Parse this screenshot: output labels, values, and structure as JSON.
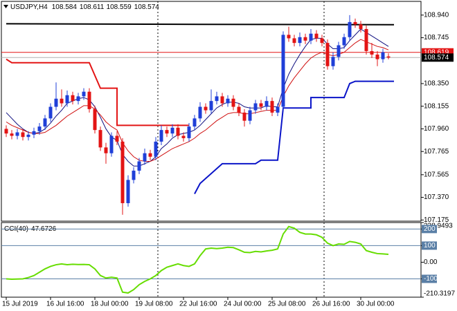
{
  "chart_data": [
    {
      "type": "candlestick",
      "title": "USDJPY,H4",
      "open": [
        107.96,
        107.92,
        107.9,
        107.93,
        107.89,
        107.91,
        107.94,
        107.98,
        108.05,
        108.15,
        108.22,
        108.18,
        108.25,
        108.2,
        108.24,
        108.28,
        108.13,
        107.95,
        107.8,
        107.75,
        107.9,
        107.85,
        107.32,
        107.52,
        107.6,
        107.68,
        107.75,
        107.72,
        107.85,
        107.95,
        107.92,
        107.97,
        107.9,
        107.88,
        107.98,
        108.05,
        108.15,
        108.12,
        108.2,
        108.24,
        108.18,
        108.22,
        108.15,
        108.1,
        108.03,
        108.12,
        108.18,
        108.15,
        108.2,
        108.1,
        108.15,
        108.77,
        108.74,
        108.7,
        108.75,
        108.72,
        108.78,
        108.74,
        108.7,
        108.5,
        108.58,
        108.68,
        108.75,
        108.88,
        108.86,
        108.82,
        108.63,
        108.6,
        108.56,
        108.584
      ],
      "high": [
        107.99,
        107.95,
        107.96,
        107.96,
        107.94,
        107.97,
        108.01,
        108.08,
        108.18,
        108.36,
        108.3,
        108.29,
        108.28,
        108.27,
        108.31,
        108.31,
        108.16,
        107.98,
        107.84,
        107.93,
        107.94,
        107.88,
        107.56,
        107.63,
        107.71,
        107.79,
        107.78,
        107.89,
        107.99,
        107.98,
        108.0,
        108.0,
        107.93,
        108.01,
        108.08,
        108.19,
        108.18,
        108.3,
        108.28,
        108.27,
        108.25,
        108.25,
        108.18,
        108.13,
        108.15,
        108.21,
        108.21,
        108.24,
        108.23,
        108.18,
        108.8,
        108.84,
        108.77,
        108.79,
        108.78,
        108.82,
        108.81,
        108.77,
        108.73,
        108.62,
        108.71,
        108.78,
        108.94,
        108.91,
        108.89,
        108.85,
        108.7,
        108.63,
        108.65,
        108.611
      ],
      "low": [
        107.89,
        107.87,
        107.87,
        107.86,
        107.86,
        107.88,
        107.91,
        107.95,
        108.02,
        108.12,
        108.15,
        108.15,
        108.17,
        108.17,
        108.21,
        108.1,
        107.92,
        107.77,
        107.66,
        107.72,
        107.82,
        107.22,
        107.29,
        107.49,
        107.57,
        107.65,
        107.69,
        107.69,
        107.82,
        107.89,
        107.89,
        107.87,
        107.85,
        107.85,
        107.95,
        108.02,
        108.09,
        108.09,
        108.17,
        108.15,
        108.15,
        108.12,
        108.07,
        107.98,
        108.0,
        108.09,
        108.12,
        108.12,
        108.07,
        108.07,
        108.12,
        108.71,
        108.67,
        108.67,
        108.69,
        108.69,
        108.71,
        108.67,
        108.47,
        108.47,
        108.55,
        108.65,
        108.72,
        108.83,
        108.79,
        108.6,
        108.57,
        108.5,
        108.53,
        108.559
      ],
      "close": [
        107.92,
        107.9,
        107.93,
        107.89,
        107.91,
        107.94,
        107.98,
        108.05,
        108.15,
        108.22,
        108.18,
        108.25,
        108.2,
        108.24,
        108.28,
        108.13,
        107.95,
        107.8,
        107.75,
        107.9,
        107.85,
        107.32,
        107.52,
        107.6,
        107.68,
        107.75,
        107.72,
        107.85,
        107.95,
        107.92,
        107.97,
        107.9,
        107.88,
        107.98,
        108.05,
        108.15,
        108.12,
        108.2,
        108.24,
        108.18,
        108.22,
        108.15,
        108.1,
        108.03,
        108.12,
        108.18,
        108.15,
        108.2,
        108.1,
        108.15,
        108.77,
        108.74,
        108.7,
        108.75,
        108.72,
        108.78,
        108.74,
        108.7,
        108.5,
        108.58,
        108.68,
        108.75,
        108.88,
        108.86,
        108.82,
        108.63,
        108.6,
        108.56,
        108.62,
        108.574
      ],
      "up_color": "#1f3fd8",
      "down_color": "#e31414",
      "ylim": [
        107.165,
        109.058
      ],
      "yticks": [
        {
          "value": 108.94,
          "label": "108.940"
        },
        108.745,
        {
          "value": 108.35,
          "label": "108.350"
        },
        108.155,
        {
          "value": 107.96,
          "label": "107.960"
        },
        107.765,
        107.565,
        {
          "value": 107.37,
          "label": "107.370"
        },
        107.175
      ],
      "xticks": [
        {
          "value": 0,
          "label": "15 Jul 2019"
        },
        {
          "value": 8,
          "label": "16 Jul 16:00"
        },
        {
          "value": 16,
          "label": "18 Jul 00:00"
        },
        {
          "value": 24,
          "label": "19 Jul 08:00"
        },
        {
          "value": 32,
          "label": "22 Jul 16:00"
        },
        {
          "value": 40,
          "label": "24 Jul 00:00"
        },
        {
          "value": 48,
          "label": "25 Jul 08:00"
        },
        {
          "value": 56,
          "label": "26 Jul 16:00"
        },
        {
          "value": 64,
          "label": "30 Jul 00:00"
        }
      ],
      "lines": [
        {
          "color": "#101080",
          "values": [
            108.1,
            108.05,
            108.0,
            107.96,
            107.93,
            107.92,
            107.93,
            107.96,
            108.01,
            108.07,
            108.12,
            108.18,
            108.2,
            108.22,
            108.23,
            108.21,
            108.15,
            108.06,
            107.96,
            107.89,
            107.86,
            107.74,
            107.68,
            107.64,
            107.64,
            107.66,
            107.68,
            107.72,
            107.79,
            107.83,
            107.88,
            107.91,
            107.92,
            107.93,
            107.95,
            107.99,
            108.04,
            108.09,
            108.14,
            108.17,
            108.19,
            108.19,
            108.18,
            108.15,
            108.14,
            108.14,
            108.14,
            108.16,
            108.15,
            108.15,
            108.31,
            108.43,
            108.52,
            108.6,
            108.67,
            108.73,
            108.74,
            108.74,
            108.69,
            108.65,
            108.65,
            108.66,
            108.72,
            108.77,
            108.82,
            108.79,
            108.76,
            108.73,
            108.7,
            108.67
          ]
        },
        {
          "color": "#d01010",
          "values": [
            108.02,
            107.99,
            107.97,
            107.95,
            107.93,
            107.92,
            107.92,
            107.93,
            107.96,
            107.99,
            108.03,
            108.07,
            108.1,
            108.13,
            108.16,
            108.16,
            108.13,
            108.08,
            108.02,
            107.98,
            107.95,
            107.84,
            107.77,
            107.72,
            107.69,
            107.68,
            107.68,
            107.7,
            107.73,
            107.76,
            107.79,
            107.81,
            107.83,
            107.85,
            107.88,
            107.92,
            107.95,
            107.99,
            108.03,
            108.06,
            108.09,
            108.1,
            108.1,
            108.09,
            108.09,
            108.1,
            108.11,
            108.12,
            108.12,
            108.12,
            108.24,
            108.33,
            108.4,
            108.46,
            108.52,
            108.57,
            108.6,
            108.62,
            108.6,
            108.59,
            108.6,
            108.62,
            108.66,
            108.7,
            108.73,
            108.71,
            108.69,
            108.67,
            108.66,
            108.64
          ]
        }
      ],
      "steps": [
        {
          "color": "#000000",
          "x": [
            0,
            35,
            70
          ],
          "values": [
            108.865,
            108.86,
            108.857
          ]
        },
        {
          "color": "#e31414",
          "x": [
            0,
            1,
            15,
            17,
            20,
            20,
            33
          ],
          "values": [
            108.56,
            108.53,
            108.53,
            108.31,
            108.31,
            107.99,
            107.99
          ]
        },
        {
          "color": "#0a14c8",
          "x": [
            34,
            35,
            39,
            45,
            46,
            49,
            50,
            55,
            55,
            61,
            62,
            63,
            70
          ],
          "values": [
            107.4,
            107.49,
            107.66,
            107.66,
            107.69,
            107.69,
            108.14,
            108.14,
            108.23,
            108.23,
            108.35,
            108.37,
            108.37
          ]
        }
      ],
      "price_lines": [
        {
          "value": 108.619,
          "color": "#e31414"
        },
        {
          "value": 108.574,
          "color": "#000000"
        }
      ]
    },
    {
      "type": "line",
      "title": "CCI(40)",
      "color": "#66dd00",
      "values": [
        -100,
        -102,
        -101,
        -100,
        -92,
        -80,
        -60,
        -40,
        -25,
        -15,
        -10,
        -15,
        -12,
        -14,
        -13,
        -15,
        -40,
        -80,
        -95,
        -90,
        -95,
        -180,
        -185,
        -165,
        -135,
        -115,
        -100,
        -80,
        -50,
        -30,
        -20,
        -10,
        -20,
        -25,
        -10,
        40,
        80,
        85,
        82,
        85,
        90,
        88,
        75,
        60,
        58,
        65,
        62,
        68,
        72,
        80,
        170,
        215,
        205,
        180,
        170,
        170,
        165,
        150,
        115,
        100,
        110,
        108,
        125,
        120,
        110,
        70,
        60,
        52,
        50,
        47.6726
      ],
      "ylim": [
        -210.3197,
        238.9493
      ],
      "yticks": [
        238.9493,
        200,
        100,
        {
          "value": 0,
          "label": "0.00"
        },
        -100,
        -210.3197
      ],
      "levels": [
        200,
        100,
        -100
      ],
      "level_color": "#5a7fa6"
    }
  ]
}
